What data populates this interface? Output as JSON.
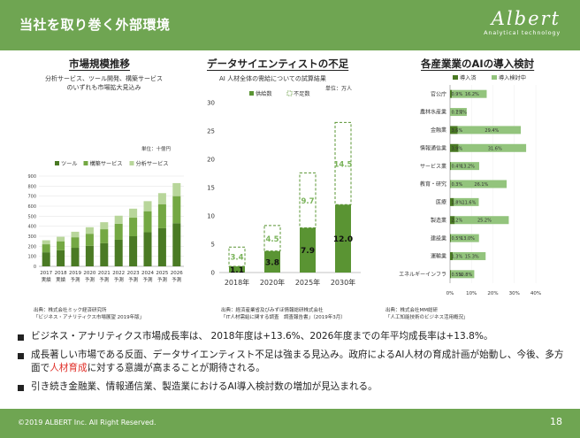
{
  "header": {
    "title": "当社を取り巻く外部環境",
    "logo_word": "Albert",
    "logo_sub": "Analytical technology"
  },
  "sections": {
    "market": {
      "title": "市場規模推移",
      "subtitle_line1": "分析サービス、ツール開発、構築サービス",
      "subtitle_line2": "のいずれも市場拡大見込み",
      "unit": "単位：十億円",
      "source_line1": "出典：株式会社ミック経済研究所",
      "source_line2": "「ビジネス・アナリティクス市場展望 2019年版」"
    },
    "shortage": {
      "title": "データサイエンティストの不足",
      "subtitle": "AI 人材全体の需給についての試算結果",
      "unit": "単位：万人",
      "source_line1": "出典：経済産業省及びみずほ情報総研株式会社",
      "source_line2": "「IT人材需給に関する調査　調査報告書」（2019年3月）"
    },
    "industry": {
      "title": "各産業業のAIの導入検討",
      "source_line1": "出典：株式会社MM総研",
      "source_line2": "「人工知能技術のビジネス活用概況」"
    }
  },
  "chart_data": [
    {
      "type": "bar",
      "stacked": true,
      "categories": [
        "2017",
        "2018",
        "2019",
        "2020",
        "2021",
        "2022",
        "2023",
        "2024",
        "2025",
        "2026"
      ],
      "category_sublabels": [
        "実績",
        "実績",
        "予測",
        "予測",
        "予測",
        "予測",
        "予測",
        "予測",
        "予測",
        "予測"
      ],
      "series": [
        {
          "name": "ツール",
          "color": "#4a7a24",
          "values": [
            140,
            160,
            185,
            205,
            230,
            265,
            300,
            340,
            380,
            430
          ]
        },
        {
          "name": "構築サービス",
          "color": "#74a843",
          "values": [
            80,
            90,
            105,
            120,
            140,
            160,
            185,
            210,
            240,
            270
          ]
        },
        {
          "name": "分析サービス",
          "color": "#b8d69a",
          "values": [
            40,
            45,
            55,
            65,
            70,
            80,
            90,
            100,
            110,
            130
          ]
        }
      ],
      "ylim": [
        0,
        900
      ],
      "yticks": [
        0,
        100,
        200,
        300,
        400,
        500,
        600,
        700,
        800,
        900
      ],
      "legend": "top"
    },
    {
      "type": "bar",
      "stacked": true,
      "categories": [
        "2018年",
        "2020年",
        "2025年",
        "2030年"
      ],
      "series": [
        {
          "name": "供給数",
          "color": "#5a9433",
          "values": [
            1.1,
            3.8,
            7.9,
            12.0
          ],
          "labels": [
            "1.1",
            "3.8",
            "7.9",
            "12.0"
          ]
        },
        {
          "name": "不足数",
          "color": "#5a9433",
          "style": "dashed",
          "values": [
            3.4,
            4.5,
            9.7,
            14.5
          ],
          "labels": [
            "3.4",
            "4.5",
            "9.7",
            "14.5"
          ]
        }
      ],
      "ylim": [
        0,
        30
      ],
      "yticks": [
        0,
        5,
        10,
        15,
        20,
        25,
        30
      ],
      "legend": "top"
    },
    {
      "type": "bar",
      "orientation": "horizontal",
      "categories": [
        "官公庁",
        "農林水産業",
        "金融業",
        "情報通信業",
        "サービス業",
        "教育・研究",
        "医療",
        "製造業",
        "建設業",
        "運輸業",
        "エネルギーインフラ"
      ],
      "series": [
        {
          "name": "導入済",
          "color": "#4a7a24",
          "values": [
            0.9,
            0.1,
            3.6,
            3.9,
            0.4,
            0.3,
            1.8,
            2.2,
            0.5,
            1.3,
            0.5
          ],
          "labels": [
            "0.9%",
            "0.1%",
            "3.6%",
            "3.9%",
            "0.4%",
            "0.3%",
            "1.8%",
            "2.2%",
            "0.5%",
            "1.3%",
            "0.5%"
          ]
        },
        {
          "name": "導入検討中",
          "color": "#93c47d",
          "values": [
            16.2,
            7.7,
            29.4,
            31.6,
            13.2,
            26.1,
            11.6,
            25.2,
            13.0,
            15.3,
            10.8
          ],
          "labels": [
            "16.2%",
            "7.7%",
            "29.4%",
            "31.6%",
            "13.2%",
            "26.1%",
            "11.6%",
            "25.2%",
            "13.0%",
            "15.3%",
            "10.8%"
          ]
        }
      ],
      "xlim": [
        0,
        40
      ],
      "xticks": [
        "0%",
        "10%",
        "20%",
        "30%",
        "40%"
      ],
      "legend": "top"
    }
  ],
  "bullets": [
    {
      "text": "ビジネス・アナリティクス市場成長率は、 2018年度は+13.6%、2026年度までの年平均成長率は+13.8%。"
    },
    {
      "pre": "成長著しい市場である反面、データサイエンティスト不足は強まる見込み。政府によるAI人材の育成計画が始動し、今後、多方面で",
      "red": "人材育成",
      "post": "に対する意識が高まることが期待される。"
    },
    {
      "text": "引き続き金融業、情報通信業、製造業におけるAI導入検討数の増加が見込まれる。"
    }
  ],
  "footer": {
    "copyright": "©2019 ALBERT Inc. All Right Reserved.",
    "page": "18"
  }
}
